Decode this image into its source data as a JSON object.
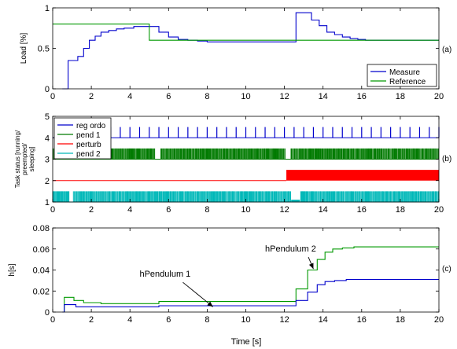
{
  "figure": {
    "xlabel": "Time [s]"
  },
  "chart_data": [
    {
      "panel": "(a)",
      "type": "line",
      "ylabel": "Load [%]",
      "xlim": [
        0,
        20
      ],
      "ylim": [
        0,
        1
      ],
      "xticks": [
        0,
        2,
        4,
        6,
        8,
        10,
        12,
        14,
        16,
        18,
        20
      ],
      "yticks": [
        0,
        0.5,
        1
      ],
      "ytick_labels": [
        "0",
        "0.5",
        "1"
      ],
      "legend": "bottom-right",
      "grid": false,
      "series": [
        {
          "name": "Measure",
          "color": "#0000cc",
          "step": true,
          "x": [
            0.5,
            0.8,
            1.3,
            1.6,
            1.9,
            2.2,
            2.5,
            2.9,
            3.3,
            3.7,
            4.2,
            5.0,
            5.5,
            6.0,
            6.5,
            7.0,
            7.5,
            8.0,
            12.2,
            12.6,
            13.4,
            13.8,
            14.2,
            14.6,
            15.0,
            15.4,
            15.8,
            16.2,
            20.0
          ],
          "y": [
            0.0,
            0.35,
            0.4,
            0.5,
            0.6,
            0.65,
            0.7,
            0.72,
            0.74,
            0.75,
            0.77,
            0.77,
            0.7,
            0.64,
            0.61,
            0.6,
            0.59,
            0.58,
            0.58,
            0.94,
            0.85,
            0.78,
            0.7,
            0.67,
            0.64,
            0.62,
            0.61,
            0.6,
            0.6
          ]
        },
        {
          "name": "Reference",
          "color": "#009900",
          "step": true,
          "x": [
            0,
            5.0,
            5.0,
            20
          ],
          "y": [
            0.8,
            0.8,
            0.6,
            0.6
          ]
        }
      ]
    },
    {
      "panel": "(b)",
      "type": "line",
      "ylabel": [
        "Task status [running/",
        "preempted/",
        "sleeping]"
      ],
      "xlim": [
        0,
        20
      ],
      "ylim": [
        1,
        5
      ],
      "xticks": [
        0,
        2,
        4,
        6,
        8,
        10,
        12,
        14,
        16,
        18,
        20
      ],
      "yticks": [
        1,
        2,
        3,
        4,
        5
      ],
      "legend": "top-left",
      "grid": false,
      "series": [
        {
          "name": "reg ordo",
          "color": "#0000cc",
          "baseline": 4,
          "high": 4.5,
          "period": 0.5,
          "start": 0.5
        },
        {
          "name": "pend 1",
          "color": "#007a00",
          "baseline": 3,
          "high": 3.5,
          "dense": true
        },
        {
          "name": "perturb",
          "color": "#ff0000",
          "baseline": 2,
          "high": 2.5,
          "active_from": 12.1
        },
        {
          "name": "pend 2",
          "color": "#00b8b8",
          "baseline": 1,
          "high": 1.5,
          "dense": true
        }
      ]
    },
    {
      "panel": "(c)",
      "type": "line",
      "ylabel": "h[s]",
      "xlim": [
        0,
        20
      ],
      "ylim": [
        0,
        0.08
      ],
      "xticks": [
        0,
        2,
        4,
        6,
        8,
        10,
        12,
        14,
        16,
        18,
        20
      ],
      "yticks": [
        0,
        0.02,
        0.04,
        0.06,
        0.08
      ],
      "ytick_labels": [
        "0",
        "0.02",
        "0.04",
        "0.06",
        "0.08"
      ],
      "grid": false,
      "annotations": [
        {
          "text": "hPendulum 2",
          "text_at": [
            11.0,
            0.0575
          ],
          "arrow_to": [
            13.5,
            0.041
          ]
        },
        {
          "text": "hPendulum 1",
          "text_at": [
            4.5,
            0.0335
          ],
          "arrow_to": [
            8.3,
            0.005
          ]
        }
      ],
      "series": [
        {
          "name": "hPendulum 2",
          "color": "#009900",
          "step": true,
          "x": [
            0.5,
            0.6,
            1.1,
            1.6,
            2.5,
            5.0,
            5.5,
            12.3,
            12.6,
            13.2,
            13.7,
            14.1,
            14.5,
            15.0,
            15.6,
            20.0
          ],
          "y": [
            0.0,
            0.014,
            0.011,
            0.009,
            0.008,
            0.008,
            0.01,
            0.01,
            0.022,
            0.04,
            0.05,
            0.057,
            0.06,
            0.061,
            0.062,
            0.062
          ]
        },
        {
          "name": "hPendulum 1",
          "color": "#0000cc",
          "step": true,
          "x": [
            0.5,
            0.6,
            1.2,
            5.0,
            5.5,
            12.3,
            12.6,
            13.2,
            13.7,
            14.1,
            14.6,
            15.2,
            20.0
          ],
          "y": [
            0.0,
            0.007,
            0.005,
            0.005,
            0.006,
            0.006,
            0.011,
            0.019,
            0.026,
            0.029,
            0.03,
            0.031,
            0.031
          ]
        }
      ]
    }
  ]
}
